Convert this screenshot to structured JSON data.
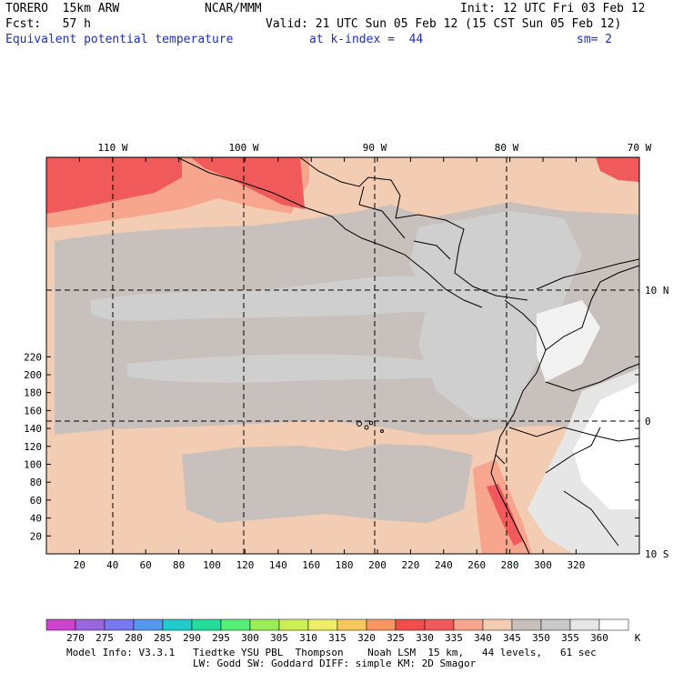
{
  "header": {
    "model": "TORERO  15km ARW",
    "org": "NCAR/MMM",
    "init": "Init: 12 UTC Fri 03 Feb 12",
    "fcst": "Fcst:   57 h",
    "valid": "Valid: 21 UTC Sun 05 Feb 12 (15 CST Sun 05 Feb 12)",
    "field": "Equivalent potential temperature",
    "level": "at k-index =  44",
    "smooth": "sm= 2"
  },
  "map": {
    "top_lon_labels": [
      "110 W",
      "100 W",
      "90 W",
      "80 W",
      "70 W"
    ],
    "right_lat_labels": [
      "10 N",
      "0",
      "10 S"
    ],
    "x_ticks": [
      "20",
      "40",
      "60",
      "80",
      "100",
      "120",
      "140",
      "160",
      "180",
      "200",
      "220",
      "240",
      "260",
      "280",
      "300",
      "320"
    ],
    "y_ticks": [
      "20",
      "40",
      "60",
      "80",
      "100",
      "120",
      "140",
      "160",
      "180",
      "200",
      "220"
    ]
  },
  "colorbar": {
    "labels": [
      "270",
      "275",
      "280",
      "285",
      "290",
      "295",
      "300",
      "305",
      "310",
      "315",
      "320",
      "325",
      "330",
      "335",
      "340",
      "345",
      "350",
      "355",
      "360"
    ],
    "unit": "K",
    "colors": [
      "#cc44cc",
      "#9966dd",
      "#7777ee",
      "#5599ee",
      "#22cccc",
      "#22dd99",
      "#55ee77",
      "#99ee55",
      "#ccee55",
      "#eeee66",
      "#f7c860",
      "#f79660",
      "#f24d4d",
      "#f05a5a",
      "#f7a58c",
      "#f2ccb3",
      "#c8c0bc",
      "#c9c9c9",
      "#e6e6e6",
      "#ffffff"
    ]
  },
  "field_colors": {
    "peach": "#f2ccb3",
    "taupe": "#c8c0bc",
    "gray": "#c9c9c9",
    "light": "#e6e6e6",
    "white": "#ffffff",
    "salmon": "#f7a58c",
    "red": "#f05a5a"
  },
  "footer": {
    "line1": "Model Info: V3.3.1   Tiedtke YSU PBL  Thompson    Noah LSM  15 km,   44 levels,   61 sec",
    "line2": "LW: Godd SW: Goddard DIFF: simple KM: 2D Smagor"
  }
}
